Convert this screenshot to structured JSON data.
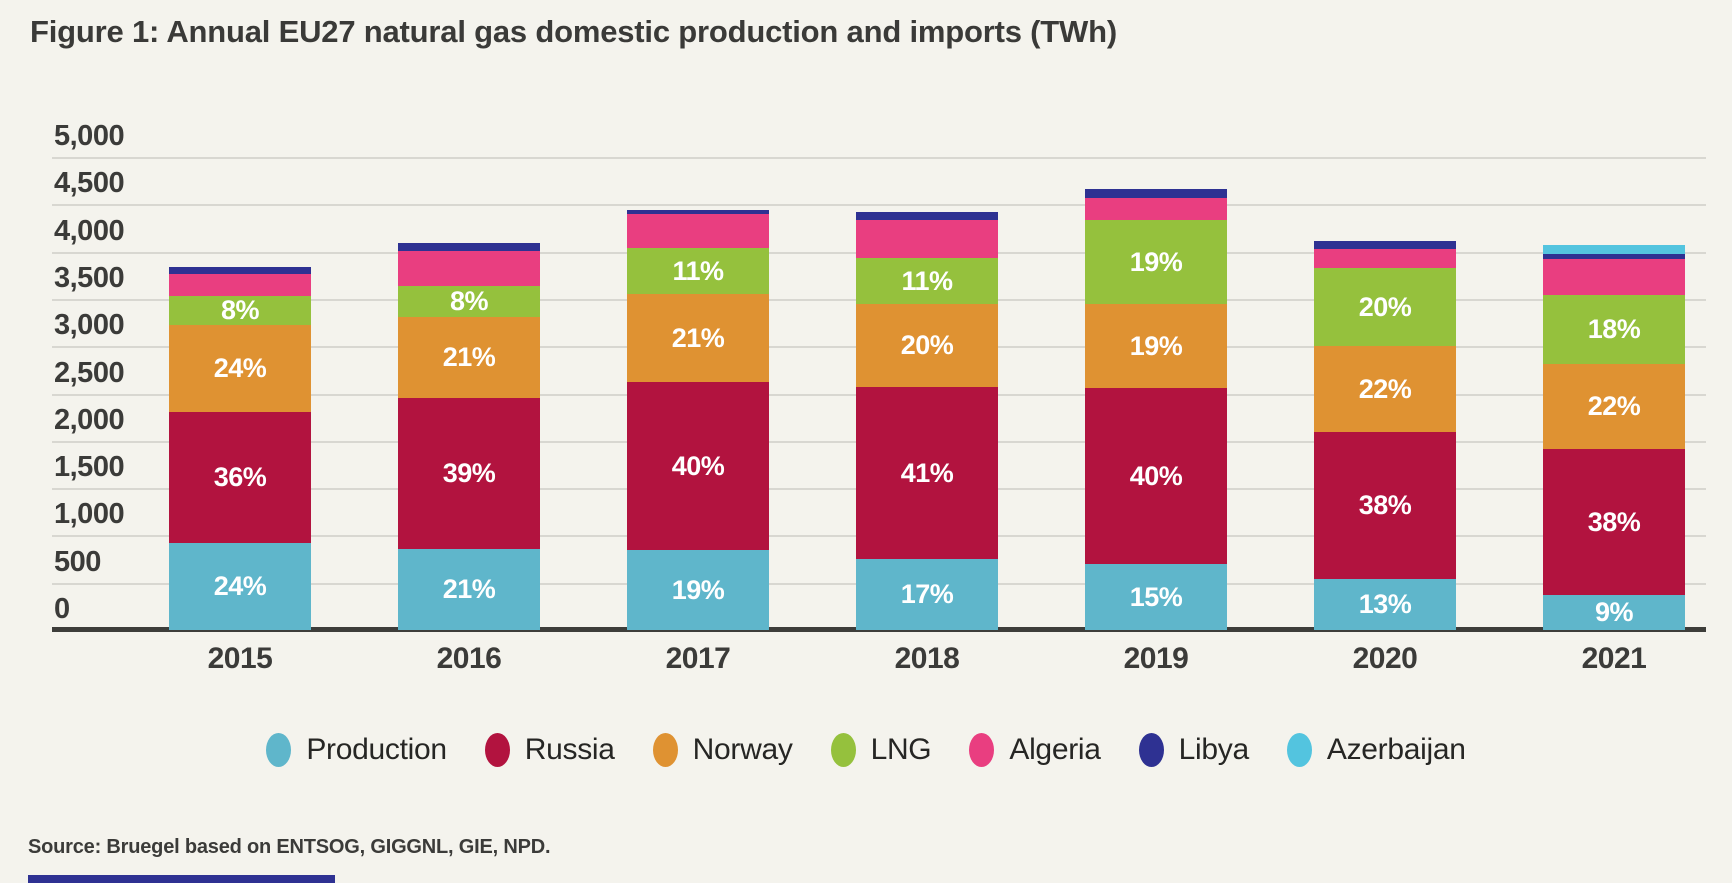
{
  "title": "Figure 1: Annual EU27 natural gas domestic production and imports (TWh)",
  "source": "Source: Bruegel based on ENTSOG, GIGGNL, GIE, NPD.",
  "colors": {
    "background": "#f4f3ed",
    "gridline": "#d8d7d1",
    "axis": "#3d3d3a",
    "text": "#3b3b39",
    "footer_accent": "#2e3192"
  },
  "y_axis": {
    "ticks": [
      "0",
      "500",
      "1,000",
      "1,500",
      "2,000",
      "2,500",
      "3,000",
      "3,500",
      "4,000",
      "4,500",
      "5,000"
    ],
    "min": 0,
    "max": 5000,
    "step": 500,
    "grid": true
  },
  "legend": [
    {
      "label": "Production",
      "color": "#5fb6cb"
    },
    {
      "label": "Russia",
      "color": "#b2133f"
    },
    {
      "label": "Norway",
      "color": "#df9232"
    },
    {
      "label": "LNG",
      "color": "#95c13d"
    },
    {
      "label": "Algeria",
      "color": "#e93e80"
    },
    {
      "label": "Libya",
      "color": "#2e3192"
    },
    {
      "label": "Azerbaijan",
      "color": "#53c4df"
    }
  ],
  "chart_data": {
    "type": "bar",
    "subtype": "stacked-percent-labeled",
    "categories": [
      "2015",
      "2016",
      "2017",
      "2018",
      "2019",
      "2020",
      "2021"
    ],
    "totals_twh": [
      3840,
      4090,
      4440,
      4420,
      4660,
      4110,
      4070
    ],
    "ylim": [
      0,
      5000
    ],
    "legend_position": "bottom",
    "series": [
      {
        "name": "Production",
        "color": "#5fb6cb",
        "pct": [
          24,
          21,
          19,
          17,
          15,
          13,
          9
        ],
        "labels": [
          "24%",
          "21%",
          "19%",
          "17%",
          "15%",
          "13%",
          "9%"
        ]
      },
      {
        "name": "Russia",
        "color": "#b2133f",
        "pct": [
          36,
          39,
          40,
          41,
          40,
          38,
          38
        ],
        "labels": [
          "36%",
          "39%",
          "40%",
          "41%",
          "40%",
          "38%",
          "38%"
        ]
      },
      {
        "name": "Norway",
        "color": "#df9232",
        "pct": [
          24,
          21,
          21,
          20,
          19,
          22,
          22
        ],
        "labels": [
          "24%",
          "21%",
          "21%",
          "20%",
          "19%",
          "22%",
          "22%"
        ]
      },
      {
        "name": "LNG",
        "color": "#95c13d",
        "pct": [
          8,
          8,
          11,
          11,
          19,
          20,
          18
        ],
        "labels": [
          "8%",
          "8%",
          "11%",
          "11%",
          "19%",
          "20%",
          "18%"
        ]
      },
      {
        "name": "Algeria",
        "color": "#e93e80",
        "pct": [
          6,
          9,
          8,
          9,
          5,
          5,
          9.4
        ],
        "labels": [
          null,
          null,
          null,
          null,
          null,
          null,
          null
        ]
      },
      {
        "name": "Libya",
        "color": "#2e3192",
        "pct": [
          2,
          2,
          1,
          2,
          2,
          2,
          1.3
        ],
        "labels": [
          null,
          null,
          null,
          null,
          null,
          null,
          null
        ]
      },
      {
        "name": "Azerbaijan",
        "color": "#53c4df",
        "pct": [
          0,
          0,
          0,
          0,
          0,
          0,
          2.3
        ],
        "labels": [
          null,
          null,
          null,
          null,
          null,
          null,
          null
        ]
      }
    ]
  }
}
